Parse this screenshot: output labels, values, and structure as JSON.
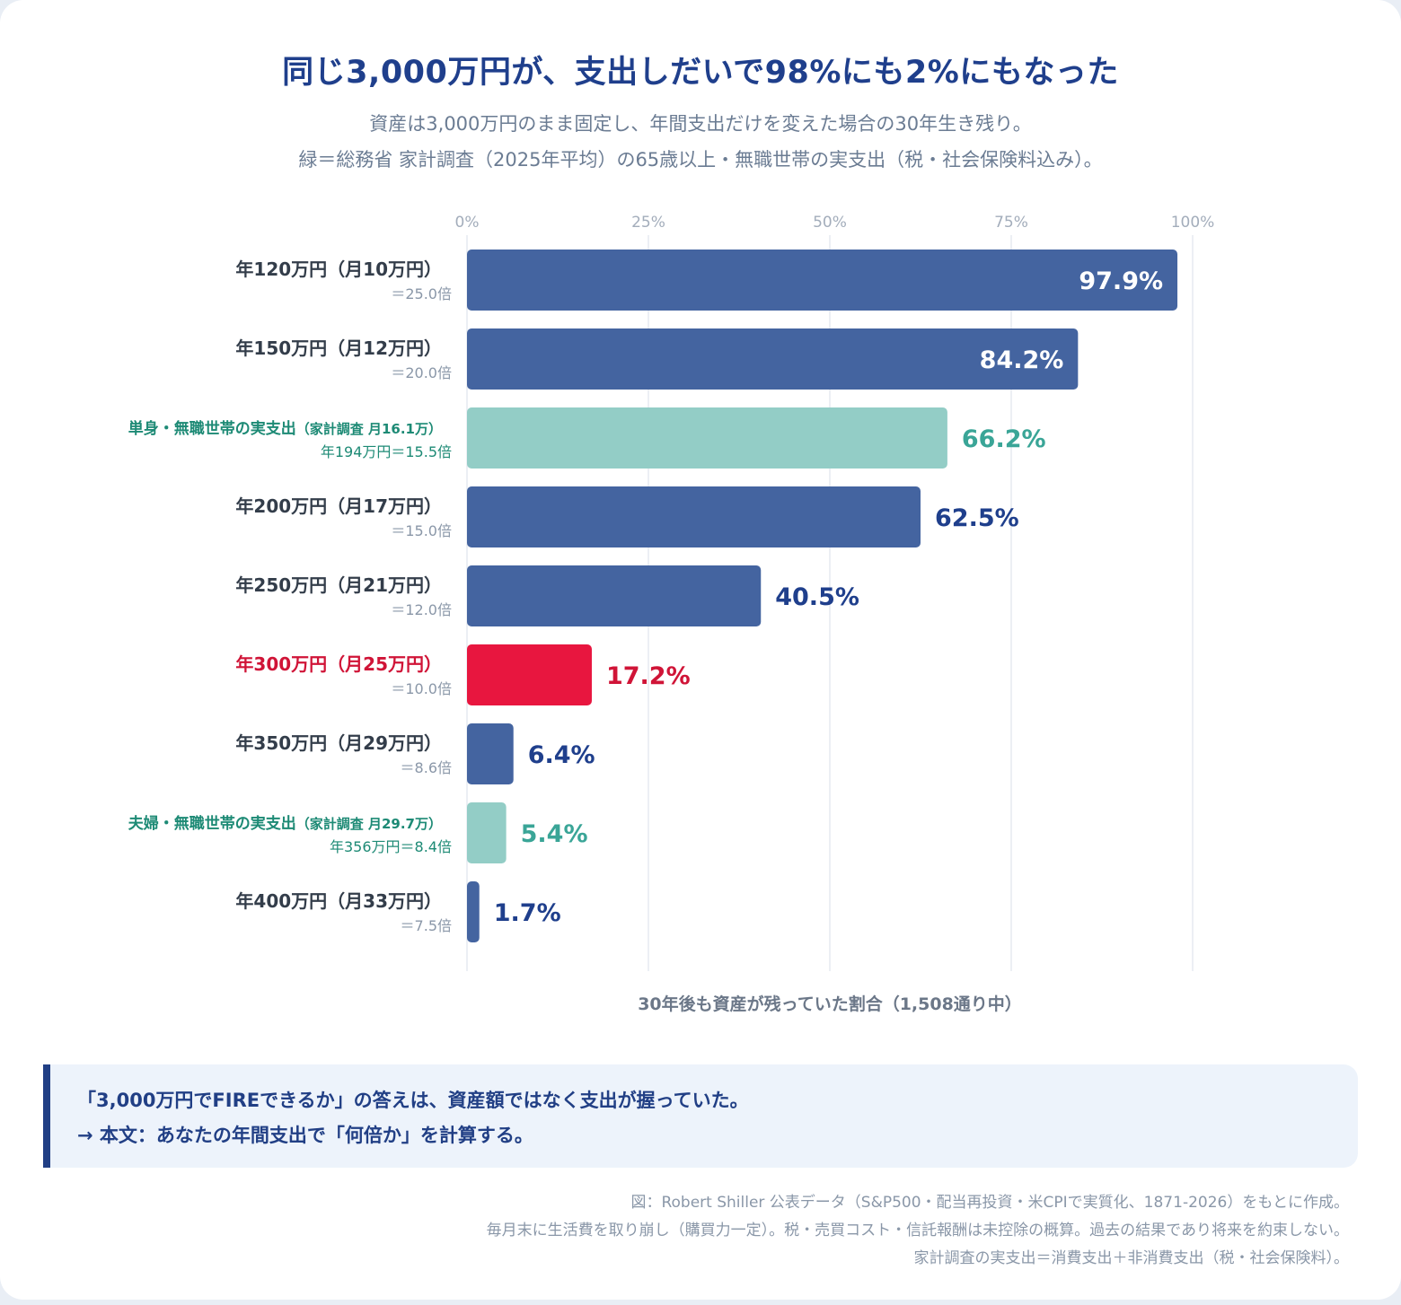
{
  "header": {
    "title": "同じ3,000万円が、支出しだいで98%にも2%にもなった",
    "subtitle_line1": "資産は3,000万円のまま固定し、年間支出だけを変えた場合の30年生き残り。",
    "subtitle_line2": "緑＝総務省 家計調査（2025年平均）の65歳以上・無職世帯の実支出（税・社会保険料込み）。"
  },
  "colors": {
    "bar_default": "#4464a0",
    "bar_highlight": "#e8163f",
    "bar_reference": "#93cdc6",
    "label_default": "#333d4a",
    "label_highlight": "#d01437",
    "label_reference": "#1d8a75",
    "value_default": "#1f3f8c",
    "value_reference": "#3aa597",
    "sub_default": "#8a97a8",
    "grid": "#e6eaf0",
    "tick": "#a3adbb"
  },
  "chart_data": {
    "type": "bar",
    "orientation": "horizontal",
    "xlabel": "30年後も資産が残っていた割合（1,508通り中）",
    "xlim": [
      0,
      100
    ],
    "x_ticks": [
      "0%",
      "25%",
      "50%",
      "75%",
      "100%"
    ],
    "grid": true,
    "categories": [
      {
        "label": "年120万円（月10万円）",
        "sub": "＝25.0倍",
        "value": 97.9,
        "value_label": "97.9%",
        "style": "default"
      },
      {
        "label": "年150万円（月12万円）",
        "sub": "＝20.0倍",
        "value": 84.2,
        "value_label": "84.2%",
        "style": "default"
      },
      {
        "label": "単身・無職世帯の実支出",
        "label_note": "（家計調査 月16.1万）",
        "sub": "年194万円＝15.5倍",
        "value": 66.2,
        "value_label": "66.2%",
        "style": "reference"
      },
      {
        "label": "年200万円（月17万円）",
        "sub": "＝15.0倍",
        "value": 62.5,
        "value_label": "62.5%",
        "style": "default"
      },
      {
        "label": "年250万円（月21万円）",
        "sub": "＝12.0倍",
        "value": 40.5,
        "value_label": "40.5%",
        "style": "default"
      },
      {
        "label": "年300万円（月25万円）",
        "sub": "＝10.0倍",
        "value": 17.2,
        "value_label": "17.2%",
        "style": "highlight"
      },
      {
        "label": "年350万円（月29万円）",
        "sub": "＝8.6倍",
        "value": 6.4,
        "value_label": "6.4%",
        "style": "default"
      },
      {
        "label": "夫婦・無職世帯の実支出",
        "label_note": "（家計調査 月29.7万）",
        "sub": "年356万円＝8.4倍",
        "value": 5.4,
        "value_label": "5.4%",
        "style": "reference"
      },
      {
        "label": "年400万円（月33万円）",
        "sub": "＝7.5倍",
        "value": 1.7,
        "value_label": "1.7%",
        "style": "default"
      }
    ]
  },
  "callout": {
    "line1": "「3,000万円でFIREできるか」の答えは、資産額ではなく支出が握っていた。",
    "line2": "→ 本文：あなたの年間支出で「何倍か」を計算する。"
  },
  "footer": {
    "line1": "図：Robert Shiller 公表データ（S&P500・配当再投資・米CPIで実質化、1871-2026）をもとに作成。",
    "line2": "毎月末に生活費を取り崩し（購買力一定）。税・売買コスト・信託報酬は未控除の概算。過去の結果であり将来を約束しない。",
    "line3": "家計調査の実支出＝消費支出＋非消費支出（税・社会保険料）。"
  }
}
